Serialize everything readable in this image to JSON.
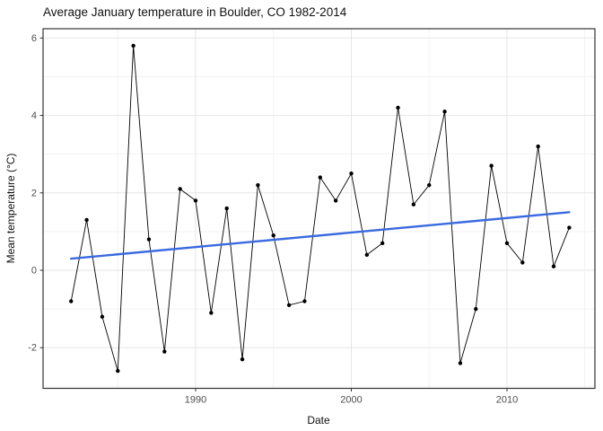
{
  "chart_data": {
    "type": "line",
    "title": "Average January temperature in Boulder, CO 1982-2014",
    "xlabel": "Date",
    "ylabel": "Mean temperature (°C)",
    "x": [
      1982,
      1983,
      1984,
      1985,
      1986,
      1987,
      1988,
      1989,
      1990,
      1991,
      1992,
      1993,
      1994,
      1995,
      1996,
      1997,
      1998,
      1999,
      2000,
      2001,
      2002,
      2003,
      2004,
      2005,
      2006,
      2007,
      2008,
      2009,
      2010,
      2011,
      2012,
      2013,
      2014
    ],
    "series": [
      {
        "name": "mean-january-temperature",
        "color": "#000000",
        "marker": "point",
        "values": [
          -0.8,
          1.3,
          -1.2,
          -2.6,
          5.8,
          0.8,
          -2.1,
          2.1,
          1.8,
          -1.1,
          1.6,
          -2.3,
          2.2,
          0.9,
          -0.9,
          -0.8,
          2.4,
          1.8,
          2.5,
          0.4,
          0.7,
          4.2,
          1.7,
          2.2,
          4.1,
          -2.4,
          -1.0,
          2.7,
          0.7,
          0.2,
          3.2,
          0.1,
          1.1
        ]
      }
    ],
    "trend": {
      "name": "linear-fit",
      "color": "#3a6ae0",
      "x": [
        1982,
        2014
      ],
      "y": [
        0.3,
        1.5
      ]
    },
    "xlim": [
      1980.2,
      2015.65
    ],
    "ylim": [
      -3.05,
      6.24
    ],
    "x_ticks": [
      1990,
      2000,
      2010
    ],
    "x_tick_labels": [
      "1990",
      "2000",
      "2010"
    ],
    "y_ticks": [
      -2,
      0,
      2,
      4,
      6
    ],
    "y_tick_labels": [
      "-2",
      "0",
      "2",
      "4",
      "6"
    ],
    "x_minor_ticks": [
      1985,
      1995,
      2005,
      2015
    ],
    "y_minor_ticks": [
      -3,
      -1,
      1,
      3,
      5
    ],
    "grid": true,
    "legend_position": "none",
    "colors": {
      "background": "#ffffff",
      "panel_background": "#ffffff",
      "panel_border": "#333333",
      "major_grid": "#e6e6e6",
      "minor_grid": "#f2f2f2",
      "tick_mark": "#333333",
      "tick_label": "#4d4d4d",
      "title_text": "#111111",
      "data_line": "#000000",
      "trend_line": "#3a6ae0"
    }
  }
}
